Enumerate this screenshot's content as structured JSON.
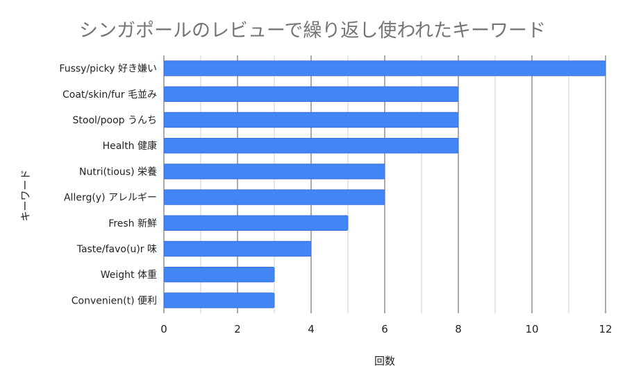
{
  "chart_data": {
    "type": "bar",
    "orientation": "horizontal",
    "title": "シンガポールのレビューで繰り返し使われたキーワード",
    "xlabel": "回数",
    "ylabel": "キーワード",
    "xlim": [
      0,
      12
    ],
    "x_ticks": [
      "0",
      "2",
      "4",
      "6",
      "8",
      "10",
      "12"
    ],
    "grid": true,
    "legend": "none",
    "bar_color": "#4285f4",
    "categories": [
      "Fussy/picky 好き嫌い",
      "Coat/skin/fur 毛並み",
      "Stool/poop うんち",
      "Health 健康",
      "Nutri(tious) 栄養",
      "Allerg(y) アレルギー",
      "Fresh 新鮮",
      "Taste/favo(u)r 味",
      "Weight 体重",
      "Convenien(t) 便利"
    ],
    "values": [
      12,
      8,
      8,
      8,
      6,
      6,
      5,
      4,
      3,
      3
    ]
  }
}
